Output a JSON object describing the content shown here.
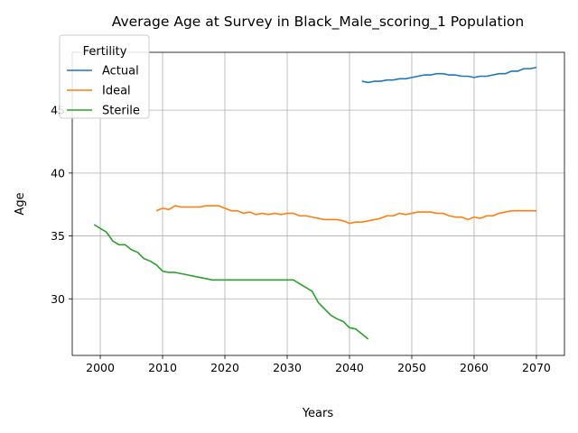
{
  "chart_data": {
    "type": "line",
    "title": "Average Age at Survey in Black_Male_scoring_1 Population",
    "xlabel": "Years",
    "ylabel": "Age",
    "xlim": [
      1995.5,
      2074.5
    ],
    "ylim": [
      25.5,
      49.6
    ],
    "xticks": [
      2000,
      2010,
      2020,
      2030,
      2040,
      2050,
      2060,
      2070
    ],
    "yticks": [
      30,
      35,
      40,
      45
    ],
    "grid": true,
    "legend": {
      "title": "Fertility",
      "placement": "upper-left"
    },
    "series": [
      {
        "name": "Actual",
        "color": "#1f77b4",
        "x": [
          2042,
          2043,
          2044,
          2045,
          2046,
          2047,
          2048,
          2049,
          2050,
          2051,
          2052,
          2053,
          2054,
          2055,
          2056,
          2057,
          2058,
          2059,
          2060,
          2061,
          2062,
          2063,
          2064,
          2065,
          2066,
          2067,
          2068,
          2069,
          2070
        ],
        "y": [
          47.3,
          47.2,
          47.3,
          47.3,
          47.4,
          47.4,
          47.5,
          47.5,
          47.6,
          47.7,
          47.8,
          47.8,
          47.9,
          47.9,
          47.8,
          47.8,
          47.7,
          47.7,
          47.6,
          47.7,
          47.7,
          47.8,
          47.9,
          47.9,
          48.1,
          48.1,
          48.3,
          48.3,
          48.4
        ]
      },
      {
        "name": "Ideal",
        "color": "#ff7f0e",
        "x": [
          2009,
          2010,
          2011,
          2012,
          2013,
          2014,
          2015,
          2016,
          2017,
          2018,
          2019,
          2020,
          2021,
          2022,
          2023,
          2024,
          2025,
          2026,
          2027,
          2028,
          2029,
          2030,
          2031,
          2032,
          2033,
          2034,
          2035,
          2036,
          2037,
          2038,
          2039,
          2040,
          2041,
          2042,
          2043,
          2044,
          2045,
          2046,
          2047,
          2048,
          2049,
          2050,
          2051,
          2052,
          2053,
          2054,
          2055,
          2056,
          2057,
          2058,
          2059,
          2060,
          2061,
          2062,
          2063,
          2064,
          2065,
          2066,
          2067,
          2068,
          2069,
          2070
        ],
        "y": [
          37.0,
          37.2,
          37.1,
          37.4,
          37.3,
          37.3,
          37.3,
          37.3,
          37.4,
          37.4,
          37.4,
          37.2,
          37.0,
          37.0,
          36.8,
          36.9,
          36.7,
          36.8,
          36.7,
          36.8,
          36.7,
          36.8,
          36.8,
          36.6,
          36.6,
          36.5,
          36.4,
          36.3,
          36.3,
          36.3,
          36.2,
          36.0,
          36.1,
          36.1,
          36.2,
          36.3,
          36.4,
          36.6,
          36.6,
          36.8,
          36.7,
          36.8,
          36.9,
          36.9,
          36.9,
          36.8,
          36.8,
          36.6,
          36.5,
          36.5,
          36.3,
          36.5,
          36.4,
          36.6,
          36.6,
          36.8,
          36.9,
          37.0,
          37.0,
          37.0,
          37.0,
          37.0
        ]
      },
      {
        "name": "Sterile",
        "color": "#2ca02c",
        "x": [
          1999,
          2000,
          2001,
          2002,
          2003,
          2004,
          2005,
          2006,
          2007,
          2008,
          2009,
          2010,
          2011,
          2012,
          2013,
          2014,
          2015,
          2016,
          2017,
          2018,
          2019,
          2020,
          2021,
          2022,
          2023,
          2024,
          2025,
          2026,
          2027,
          2028,
          2029,
          2030,
          2031,
          2032,
          2033,
          2034,
          2035,
          2036,
          2037,
          2038,
          2039,
          2040,
          2041,
          2042,
          2043
        ],
        "y": [
          35.9,
          35.6,
          35.3,
          34.6,
          34.3,
          34.3,
          33.9,
          33.7,
          33.2,
          33.0,
          32.7,
          32.2,
          32.1,
          32.1,
          32.0,
          31.9,
          31.8,
          31.7,
          31.6,
          31.5,
          31.5,
          31.5,
          31.5,
          31.5,
          31.5,
          31.5,
          31.5,
          31.5,
          31.5,
          31.5,
          31.5,
          31.5,
          31.5,
          31.2,
          30.9,
          30.6,
          29.7,
          29.2,
          28.7,
          28.4,
          28.2,
          27.7,
          27.6,
          27.2,
          26.8
        ]
      }
    ]
  }
}
